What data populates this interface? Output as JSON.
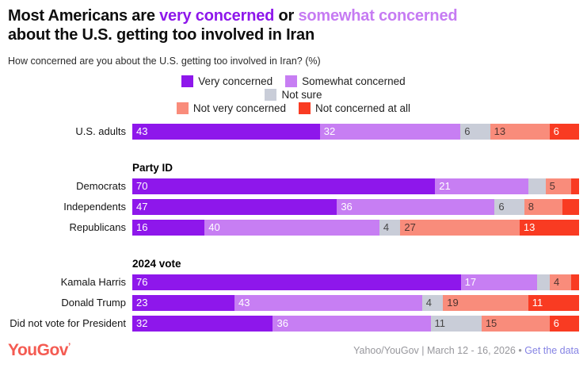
{
  "title": {
    "line1_pre": "Most Americans are ",
    "line1_very": "very concerned",
    "line1_mid": " or ",
    "line1_somewhat": "somewhat concerned",
    "line2": "about the U.S. getting too involved in Iran"
  },
  "subtitle": "How concerned are you about the U.S. getting too involved in Iran? (%)",
  "colors": {
    "very_concerned": "#8e17eb",
    "somewhat_concerned": "#c77ef3",
    "not_sure": "#c9cdd8",
    "not_very_concerned": "#f98c7b",
    "not_concerned_at_all": "#f93b22",
    "title_very": "#8e17eb",
    "title_somewhat": "#c67bf3",
    "logo_red": "#f45b52",
    "link_purple": "#8583e4",
    "credit_gray": "#97979c"
  },
  "legend": {
    "items": [
      {
        "label": "Very concerned",
        "color": "#8e17eb"
      },
      {
        "label": "Somewhat concerned",
        "color": "#c77ef3"
      },
      {
        "label": "Not sure",
        "color": "#c9cdd8"
      },
      {
        "label": "Not very concerned",
        "color": "#f98c7b"
      },
      {
        "label": "Not concerned at all",
        "color": "#f93b22"
      }
    ],
    "rows": [
      [
        0,
        1
      ],
      [
        2
      ],
      [
        3,
        4
      ]
    ]
  },
  "chart_data": {
    "type": "bar",
    "stacked": true,
    "orientation": "horizontal",
    "unit": "%",
    "xlim": [
      0,
      100
    ],
    "min_label_value": 4,
    "series_names": [
      "Very concerned",
      "Somewhat concerned",
      "Not sure",
      "Not very concerned",
      "Not concerned at all"
    ],
    "series_colors": [
      "#8e17eb",
      "#c77ef3",
      "#c9cdd8",
      "#f98c7b",
      "#f93b22"
    ],
    "value_label_colors": [
      "#ffffff",
      "#ffffff",
      "#474747",
      "#4f3430",
      "#ffffff"
    ],
    "groups": [
      {
        "header": "",
        "rows": [
          {
            "label": "U.S. adults",
            "values": [
              43,
              32,
              6,
              13,
              6
            ]
          }
        ]
      },
      {
        "header": "Party ID",
        "rows": [
          {
            "label": "Democrats",
            "values": [
              70,
              21,
              3,
              5,
              1
            ]
          },
          {
            "label": "Independents",
            "values": [
              47,
              36,
              6,
              8,
              3
            ]
          },
          {
            "label": "Republicans",
            "values": [
              16,
              40,
              4,
              27,
              13
            ]
          }
        ]
      },
      {
        "header": "2024 vote",
        "rows": [
          {
            "label": "Kamala Harris",
            "values": [
              76,
              17,
              2,
              4,
              1
            ]
          },
          {
            "label": "Donald Trump",
            "values": [
              23,
              43,
              4,
              19,
              11
            ]
          },
          {
            "label": "Did not vote for President",
            "values": [
              32,
              36,
              11,
              15,
              6
            ]
          }
        ]
      }
    ]
  },
  "footer": {
    "logo_text": "YouGov",
    "logo_tick": "’",
    "credit_text": "Yahoo/YouGov | March 12 - 16, 2026",
    "separator": " • ",
    "link_label": "Get the data"
  }
}
